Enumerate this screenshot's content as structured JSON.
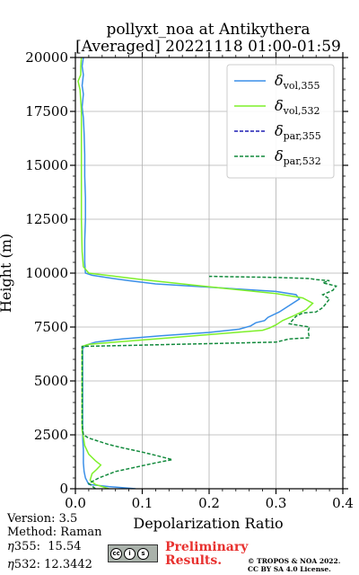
{
  "chart_data": {
    "type": "line",
    "title_line1": "pollyxt_noa at Antikythera",
    "title_line2": "[Averaged] 20221118 01:00-01:59",
    "xlabel": "Depolarization Ratio",
    "ylabel": "Height (m)",
    "xlim": [
      0,
      0.4
    ],
    "ylim": [
      0,
      20000
    ],
    "xticks": [
      "0.0",
      "0.1",
      "0.2",
      "0.3",
      "0.4"
    ],
    "xtick_values": [
      0,
      0.1,
      0.2,
      0.3,
      0.4
    ],
    "yticks": [
      "0",
      "2500",
      "5000",
      "7500",
      "10000",
      "12500",
      "15000",
      "17500",
      "20000"
    ],
    "ytick_values": [
      0,
      2500,
      5000,
      7500,
      10000,
      12500,
      15000,
      17500,
      20000
    ],
    "grid": true,
    "legend_position": "top-right",
    "series": [
      {
        "name": "δvol,355",
        "label_main": "δ",
        "label_sub": "vol,355",
        "color": "#3a8fe8",
        "dash": "solid",
        "points": [
          [
            0.09,
            0
          ],
          [
            0.05,
            100
          ],
          [
            0.02,
            200
          ],
          [
            0.015,
            500
          ],
          [
            0.013,
            800
          ],
          [
            0.012,
            1200
          ],
          [
            0.012,
            1800
          ],
          [
            0.011,
            2300
          ],
          [
            0.011,
            2800
          ],
          [
            0.011,
            3500
          ],
          [
            0.011,
            4500
          ],
          [
            0.011,
            5500
          ],
          [
            0.011,
            6200
          ],
          [
            0.011,
            6500
          ],
          [
            0.015,
            6650
          ],
          [
            0.03,
            6800
          ],
          [
            0.07,
            6950
          ],
          [
            0.13,
            7100
          ],
          [
            0.2,
            7250
          ],
          [
            0.245,
            7400
          ],
          [
            0.262,
            7550
          ],
          [
            0.27,
            7700
          ],
          [
            0.283,
            7800
          ],
          [
            0.288,
            7950
          ],
          [
            0.305,
            8200
          ],
          [
            0.32,
            8500
          ],
          [
            0.335,
            8800
          ],
          [
            0.33,
            9000
          ],
          [
            0.3,
            9150
          ],
          [
            0.2,
            9350
          ],
          [
            0.12,
            9500
          ],
          [
            0.08,
            9650
          ],
          [
            0.05,
            9780
          ],
          [
            0.025,
            9900
          ],
          [
            0.015,
            10000
          ],
          [
            0.014,
            10500
          ],
          [
            0.014,
            11500
          ],
          [
            0.015,
            12500
          ],
          [
            0.015,
            13500
          ],
          [
            0.014,
            14500
          ],
          [
            0.014,
            15500
          ],
          [
            0.013,
            16500
          ],
          [
            0.012,
            17200
          ],
          [
            0.01,
            17700
          ],
          [
            0.012,
            18300
          ],
          [
            0.01,
            18700
          ],
          [
            0.012,
            19200
          ],
          [
            0.01,
            19600
          ],
          [
            0.012,
            20000
          ]
        ]
      },
      {
        "name": "δvol,532",
        "label_main": "δ",
        "label_sub": "vol,532",
        "color": "#7ef02a",
        "dash": "solid",
        "points": [
          [
            0.05,
            0
          ],
          [
            0.03,
            200
          ],
          [
            0.022,
            400
          ],
          [
            0.025,
            700
          ],
          [
            0.032,
            900
          ],
          [
            0.038,
            1100
          ],
          [
            0.03,
            1300
          ],
          [
            0.02,
            1600
          ],
          [
            0.014,
            2000
          ],
          [
            0.012,
            2400
          ],
          [
            0.01,
            2700
          ],
          [
            0.01,
            3500
          ],
          [
            0.01,
            4500
          ],
          [
            0.01,
            5500
          ],
          [
            0.01,
            6300
          ],
          [
            0.01,
            6600
          ],
          [
            0.02,
            6700
          ],
          [
            0.06,
            6800
          ],
          [
            0.12,
            6950
          ],
          [
            0.18,
            7100
          ],
          [
            0.24,
            7250
          ],
          [
            0.28,
            7350
          ],
          [
            0.29,
            7450
          ],
          [
            0.3,
            7600
          ],
          [
            0.31,
            7800
          ],
          [
            0.325,
            8000
          ],
          [
            0.345,
            8300
          ],
          [
            0.355,
            8600
          ],
          [
            0.34,
            8850
          ],
          [
            0.3,
            9050
          ],
          [
            0.22,
            9300
          ],
          [
            0.16,
            9500
          ],
          [
            0.1,
            9700
          ],
          [
            0.06,
            9850
          ],
          [
            0.02,
            10000
          ],
          [
            0.012,
            10300
          ],
          [
            0.01,
            11000
          ],
          [
            0.009,
            12500
          ],
          [
            0.009,
            14000
          ],
          [
            0.009,
            15500
          ],
          [
            0.009,
            16500
          ],
          [
            0.009,
            17500
          ],
          [
            0.007,
            18500
          ],
          [
            0.004,
            18900
          ],
          [
            0.008,
            19200
          ],
          [
            0.008,
            19600
          ],
          [
            0.009,
            20000
          ]
        ]
      },
      {
        "name": "δpar,355",
        "label_main": "δ",
        "label_sub": "par,355",
        "color": "#1f1fb4",
        "dash": "dashed",
        "points": []
      },
      {
        "name": "δpar,532",
        "label_main": "δ",
        "label_sub": "par,532",
        "color": "#128a3c",
        "dash": "dashed",
        "points": [
          [
            0.03,
            0
          ],
          [
            0.02,
            250
          ],
          [
            0.035,
            500
          ],
          [
            0.06,
            800
          ],
          [
            0.09,
            1000
          ],
          [
            0.12,
            1200
          ],
          [
            0.145,
            1350
          ],
          [
            0.12,
            1550
          ],
          [
            0.1,
            1700
          ],
          [
            0.07,
            1900
          ],
          [
            0.05,
            2050
          ],
          [
            0.035,
            2200
          ],
          [
            0.02,
            2350
          ],
          [
            0.012,
            2500
          ],
          [
            0.01,
            3000
          ],
          [
            0.01,
            4500
          ],
          [
            0.01,
            6000
          ],
          [
            0.01,
            6600
          ],
          [
            0.3,
            6800
          ],
          [
            0.32,
            6950
          ],
          [
            0.35,
            7000
          ],
          [
            0.348,
            7300
          ],
          [
            0.35,
            7500
          ],
          [
            0.32,
            7650
          ],
          [
            0.33,
            8000
          ],
          [
            0.34,
            8150
          ],
          [
            0.36,
            8200
          ],
          [
            0.37,
            8400
          ],
          [
            0.38,
            8800
          ],
          [
            0.37,
            9000
          ],
          [
            0.385,
            9200
          ],
          [
            0.39,
            9400
          ],
          [
            0.37,
            9550
          ],
          [
            0.38,
            9650
          ],
          [
            0.36,
            9700
          ],
          [
            0.35,
            9750
          ],
          [
            0.3,
            9800
          ],
          [
            0.2,
            9850
          ]
        ]
      }
    ]
  },
  "footer": {
    "version": "Version: 3.5",
    "method": "Method: Raman",
    "eta355_label": "355:",
    "eta355_value": "15.54",
    "eta532_label": "532:",
    "eta532_value": "12.3442",
    "eta_symbol": "η",
    "preliminary_line1": "Preliminary",
    "preliminary_line2": "Results.",
    "copyright_line1": "© TROPOS & NOA 2022.",
    "copyright_line2": "CC BY SA 4.0 License."
  }
}
